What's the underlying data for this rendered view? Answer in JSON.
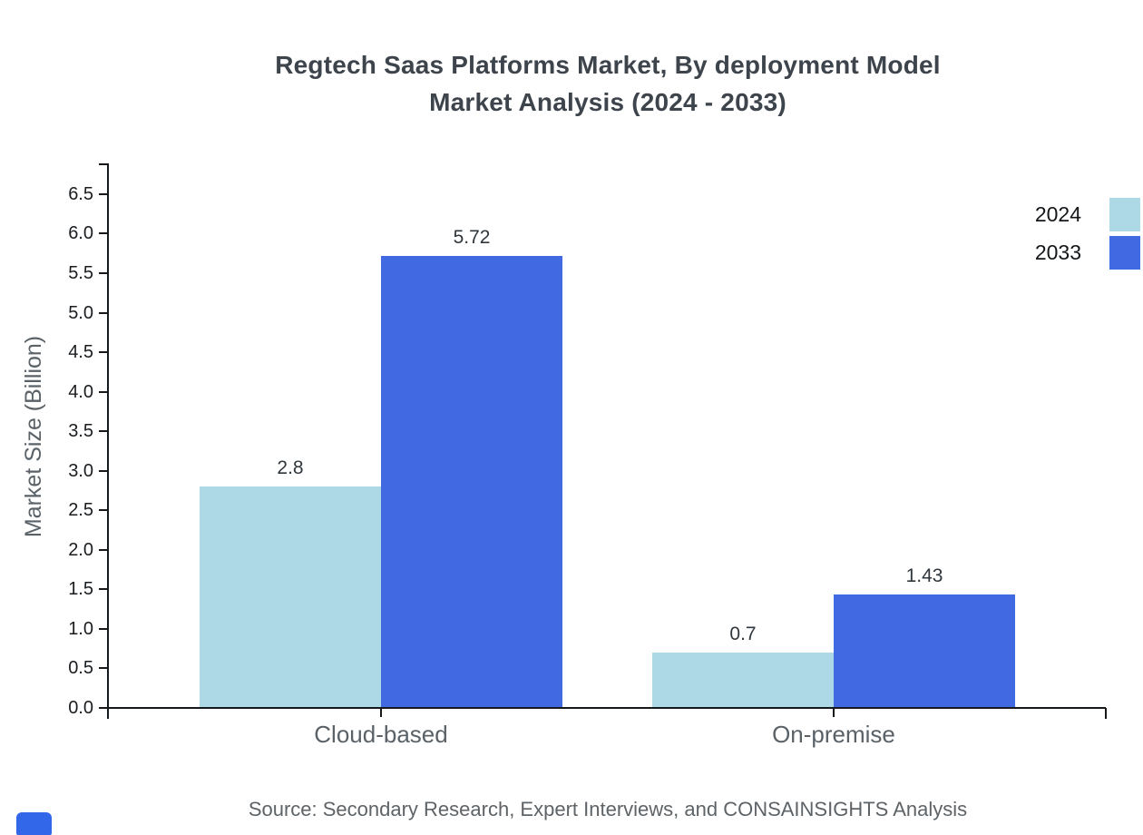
{
  "chart_data": {
    "type": "bar",
    "title": "Regtech Saas Platforms Market, By deployment Model",
    "subtitle": "Market Analysis (2024 - 2033)",
    "ylabel": "Market Size (Billion)",
    "categories": [
      "Cloud-based",
      "On-premise"
    ],
    "series": [
      {
        "name": "2024",
        "color": "#ADD8E6",
        "values": [
          2.8,
          0.7
        ]
      },
      {
        "name": "2033",
        "color": "#4169E1",
        "values": [
          5.72,
          1.43
        ]
      }
    ],
    "ylim": [
      0,
      6.9
    ],
    "yticks": [
      0.0,
      0.5,
      1.0,
      1.5,
      2.0,
      2.5,
      3.0,
      3.5,
      4.0,
      4.5,
      5.0,
      5.5,
      6.0,
      6.5
    ],
    "grid": false,
    "legend_position": "upper-right-outside",
    "value_label_precision": "as-shown",
    "source": "Source: Secondary Research, Expert Interviews, and CONSAINSIGHTS Analysis"
  },
  "colors": {
    "title": "#3d444c",
    "axis": "#16191c",
    "category_label": "#5a6268",
    "source_text": "#5e6367",
    "logo": "#3167e8"
  }
}
